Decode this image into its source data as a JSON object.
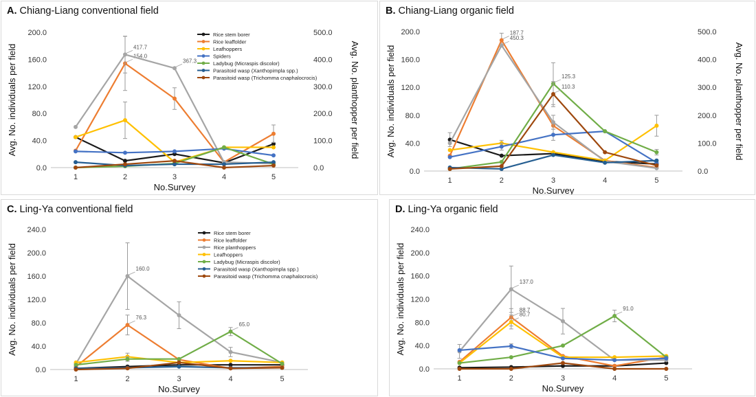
{
  "chart_data": [
    {
      "type": "line",
      "panel_letter": "A.",
      "title": "Chiang-Liang conventional field",
      "xlabel": "No.Survey",
      "ylabel": "Avg. No. individuals per field",
      "ylabel_right": "Avg. No. planthopper per field",
      "x": [
        1,
        2,
        3,
        4,
        5
      ],
      "ylim": [
        0,
        200
      ],
      "yticks": [
        "0.0",
        "40.0",
        "80.0",
        "120.0",
        "160.0",
        "200.0"
      ],
      "ylim_right": [
        0,
        500
      ],
      "yticks_right": [
        "0.0",
        "100.0",
        "200.0",
        "300.0",
        "400.0",
        "500.0"
      ],
      "legend": "top-center",
      "series": [
        {
          "name": "Rice stem borer",
          "color": "#1a1a1a",
          "values": [
            45,
            10,
            20,
            7,
            35
          ]
        },
        {
          "name": "Rice leaffolder",
          "color": "#ed7d31",
          "values": [
            25,
            154,
            102,
            8,
            50
          ],
          "error": [
            0,
            40,
            16,
            0,
            13
          ],
          "label_index": 1,
          "label": "154.0"
        },
        {
          "name": "Rice planthoppers",
          "color": "#a5a5a5",
          "axis": "right",
          "legend": false,
          "values": [
            150,
            417.7,
            367.3,
            20,
            15
          ],
          "error": [
            0,
            68,
            0,
            0,
            0
          ],
          "label_index": [
            1,
            2
          ],
          "labels": [
            "417.7",
            "367.3"
          ]
        },
        {
          "name": "Leafhoppers",
          "color": "#ffc000",
          "values": [
            45,
            70,
            8,
            30,
            30
          ],
          "error": [
            0,
            27,
            0,
            0,
            0
          ]
        },
        {
          "name": "Spiders",
          "color": "#4472c4",
          "values": [
            24,
            22,
            24,
            28,
            18
          ]
        },
        {
          "name": "Ladybug (Micraspis discolor)",
          "color": "#70ad47",
          "values": [
            0,
            2,
            6,
            30,
            5
          ]
        },
        {
          "name": "Parasitoid wasp (Xanthopimpla spp.)",
          "color": "#255e91",
          "values": [
            8,
            3,
            5,
            5,
            8
          ]
        },
        {
          "name": "Parasitoid wasp (Trichomma cnaphalocrocis)",
          "color": "#9e480e",
          "values": [
            0,
            5,
            10,
            0,
            3
          ]
        }
      ]
    },
    {
      "type": "line",
      "panel_letter": "B.",
      "title": "Chiang-Liang organic field",
      "xlabel": "No.Survey",
      "ylabel": "Avg. No. individuals per field",
      "ylabel_right": "Avg. No. planthopper per field",
      "x": [
        1,
        2,
        3,
        4,
        5
      ],
      "ylim": [
        0,
        200
      ],
      "yticks": [
        "0.0",
        "40.0",
        "80.0",
        "120.0",
        "160.0",
        "200.0"
      ],
      "ylim_right": [
        0,
        500
      ],
      "yticks_right": [
        "0.0",
        "100.0",
        "200.0",
        "300.0",
        "400.0",
        "500.0"
      ],
      "series": [
        {
          "name": "Rice stem borer",
          "color": "#1a1a1a",
          "values": [
            45,
            22,
            25,
            14,
            10
          ],
          "error": [
            10,
            0,
            0,
            0,
            0
          ]
        },
        {
          "name": "Rice leaffolder",
          "color": "#ed7d31",
          "values": [
            22,
            187.7,
            65,
            15,
            5
          ],
          "error": [
            0,
            10,
            0,
            0,
            0
          ],
          "label_index": 1,
          "label": "187.7"
        },
        {
          "name": "Rice planthoppers",
          "color": "#a5a5a5",
          "axis": "right",
          "values": [
            100,
            450.3,
            175,
            35,
            10
          ],
          "error": [
            0,
            0,
            25,
            0,
            0
          ],
          "label_index": 1,
          "label": "450.3"
        },
        {
          "name": "Leafhoppers",
          "color": "#ffc000",
          "values": [
            30,
            40,
            27,
            15,
            65
          ],
          "error": [
            0,
            4,
            0,
            0,
            15
          ]
        },
        {
          "name": "Spiders",
          "color": "#4472c4",
          "values": [
            20,
            35,
            52,
            57,
            12
          ],
          "error": [
            0,
            5,
            8,
            0,
            0
          ]
        },
        {
          "name": "Ladybug (Micraspis discolor)",
          "color": "#70ad47",
          "values": [
            3,
            13,
            125.3,
            57,
            27
          ],
          "error": [
            0,
            0,
            30,
            0,
            4
          ],
          "label_index": 2,
          "label": "125.3"
        },
        {
          "name": "Parasitoid wasp (Xanthopimpla spp.)",
          "color": "#255e91",
          "values": [
            5,
            3,
            23,
            12,
            15
          ]
        },
        {
          "name": "Parasitoid wasp (Trichomma cnaphalocrocis)",
          "color": "#9e480e",
          "values": [
            3,
            7,
            110.3,
            27,
            8
          ],
          "error": [
            0,
            0,
            18,
            0,
            0
          ],
          "label_index": 2,
          "label": "110.3"
        }
      ]
    },
    {
      "type": "line",
      "panel_letter": "C.",
      "title": "Ling-Ya conventional field",
      "xlabel": "No.Survey",
      "ylabel": "Avg. No. individuals per field",
      "x": [
        1,
        2,
        3,
        4,
        5
      ],
      "ylim": [
        0,
        240
      ],
      "yticks": [
        "0.0",
        "40.0",
        "80.0",
        "120.0",
        "160.0",
        "200.0",
        "240.0"
      ],
      "legend": "top-center",
      "series": [
        {
          "name": "Rice stem borer",
          "color": "#1a1a1a",
          "values": [
            2,
            5,
            8,
            8,
            8
          ]
        },
        {
          "name": "Rice leaffolder",
          "color": "#ed7d31",
          "values": [
            5,
            76.3,
            17,
            2,
            5
          ],
          "error": [
            0,
            17,
            0,
            0,
            0
          ],
          "label_index": 1,
          "label": "76.3"
        },
        {
          "name": "Rice planthoppers",
          "color": "#a5a5a5",
          "values": [
            10,
            160,
            93,
            30,
            12
          ],
          "error": [
            0,
            57,
            23,
            8,
            0
          ],
          "label_index": 1,
          "label": "160.0"
        },
        {
          "name": "Leafhoppers",
          "color": "#ffc000",
          "values": [
            12,
            22,
            12,
            15,
            12
          ],
          "error": [
            0,
            6,
            0,
            0,
            0
          ]
        },
        {
          "name": "Ladybug (Micraspis discolor)",
          "color": "#70ad47",
          "values": [
            8,
            18,
            18,
            65,
            10
          ],
          "error": [
            0,
            4,
            0,
            7,
            0
          ],
          "label_index": 3,
          "label": "65.0"
        },
        {
          "name": "Parasitoid wasp (Xanthopimpla spp.)",
          "color": "#255e91",
          "values": [
            2,
            3,
            5,
            3,
            3
          ]
        },
        {
          "name": "Parasitoid wasp (Trichomma cnaphalocrocis)",
          "color": "#9e480e",
          "values": [
            0,
            2,
            12,
            2,
            3
          ]
        }
      ]
    },
    {
      "type": "line",
      "panel_letter": "D.",
      "title": "Ling-Ya organic field",
      "xlabel": "No.Survey",
      "ylabel": "Avg. No. individuals per field",
      "x": [
        1,
        2,
        3,
        4,
        5
      ],
      "ylim": [
        0,
        240
      ],
      "yticks": [
        "0.0",
        "40.0",
        "80.0",
        "120.0",
        "160.0",
        "200.0",
        "240.0"
      ],
      "series": [
        {
          "name": "Rice stem borer",
          "color": "#1a1a1a",
          "values": [
            2,
            3,
            5,
            5,
            10
          ]
        },
        {
          "name": "Rice leaffolder",
          "color": "#ed7d31",
          "values": [
            12,
            88.7,
            22,
            5,
            20
          ],
          "error": [
            0,
            15,
            0,
            0,
            0
          ],
          "label_index": 1,
          "label": "88.7"
        },
        {
          "name": "Rice planthoppers",
          "color": "#a5a5a5",
          "values": [
            30,
            137,
            82,
            15,
            15
          ],
          "error": [
            12,
            40,
            22,
            0,
            0
          ],
          "label_index": 1,
          "label": "137.0"
        },
        {
          "name": "Leafhoppers",
          "color": "#ffc000",
          "values": [
            10,
            80.7,
            20,
            20,
            22
          ],
          "error": [
            0,
            12,
            0,
            0,
            0
          ],
          "label_index": 1,
          "label": "80.7"
        },
        {
          "name": "Ladybug (Micraspis discolor)",
          "color": "#70ad47",
          "values": [
            10,
            20,
            40,
            91,
            20
          ],
          "error": [
            0,
            0,
            0,
            10,
            0
          ],
          "label_index": 3,
          "label": "91.0"
        },
        {
          "name": "Spiders",
          "color": "#4472c4",
          "values": [
            32,
            39,
            18,
            15,
            18
          ],
          "error": [
            0,
            4,
            0,
            0,
            0
          ]
        },
        {
          "name": "Parasitoid wasp (Trichomma cnaphalocrocis)",
          "color": "#9e480e",
          "values": [
            0,
            0,
            10,
            0,
            0
          ]
        }
      ]
    }
  ]
}
